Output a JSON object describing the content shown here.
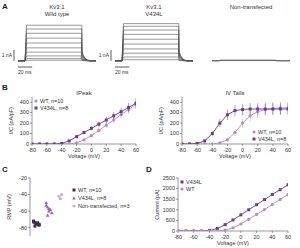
{
  "chart_data": [
    {
      "panel": "A",
      "type": "traces",
      "title": "Kv3.1",
      "subtitle": "Wild type",
      "values": [
        0.05,
        0.2,
        0.45,
        0.8,
        1.2,
        1.65,
        2.1,
        2.55,
        2.95,
        3.3
      ],
      "xlim": [
        0,
        110
      ],
      "ylim": [
        -0.3,
        3.6
      ],
      "pulse": [
        10,
        90
      ],
      "scale_y": {
        "value": 1,
        "label": "1 nA"
      },
      "scale_x": {
        "value": 20,
        "label": "20 ms"
      },
      "color": "#555555",
      "tick_labels": false
    },
    {
      "type": "traces",
      "title": "Kv3.1",
      "subtitle": "V434L",
      "values": [
        0.1,
        0.35,
        0.7,
        1.1,
        1.55,
        2.0,
        2.45,
        2.85,
        3.2,
        3.45
      ],
      "xlim": [
        0,
        110
      ],
      "ylim": [
        -0.3,
        3.6
      ],
      "pulse": [
        10,
        90
      ],
      "scale_y": {
        "value": 1,
        "label": "1 nA"
      },
      "scale_x": {
        "value": 20,
        "label": "20 ms"
      },
      "color": "#555555",
      "tick_labels": false
    },
    {
      "type": "traces",
      "title": "Non-transfected",
      "values": [
        0.02,
        0.04,
        0.06
      ],
      "xlim": [
        0,
        110
      ],
      "ylim": [
        -0.3,
        3.6
      ],
      "pulse": [
        10,
        90
      ],
      "color": "#555555",
      "tick_labels": false
    },
    {
      "panel": "B",
      "type": "line",
      "title": "IPeak",
      "x_label": "Voltage (mV)",
      "y_label": "I/C (pA/pF)",
      "x": [
        -80,
        -70,
        -60,
        -50,
        -40,
        -30,
        -20,
        -10,
        0,
        10,
        20,
        30,
        40,
        50,
        60
      ],
      "xlim": [
        -80,
        60
      ],
      "xticks": [
        -80,
        -60,
        -40,
        -20,
        0,
        20,
        40,
        60
      ],
      "ylim": [
        0,
        450
      ],
      "yticks": [
        0,
        100,
        200,
        300,
        400
      ],
      "legend": "upper left",
      "series": [
        {
          "name": "WT, n=10",
          "color": "#b48acb",
          "marker": "circle",
          "values": [
            0,
            0,
            0,
            0,
            0,
            0,
            10,
            40,
            80,
            130,
            180,
            230,
            280,
            330,
            380
          ],
          "errors": [
            0,
            0,
            0,
            0,
            0,
            0,
            5,
            10,
            15,
            20,
            25,
            30,
            35,
            40,
            45
          ]
        },
        {
          "name": "V434L, n=8",
          "color": "#6b3d8c",
          "marker": "square",
          "values": [
            0,
            0,
            0,
            0,
            5,
            30,
            70,
            110,
            150,
            190,
            230,
            270,
            310,
            350,
            390
          ],
          "errors": [
            0,
            0,
            0,
            0,
            3,
            8,
            12,
            16,
            20,
            25,
            30,
            35,
            40,
            45,
            50
          ]
        }
      ]
    },
    {
      "type": "line",
      "title": "IV Tails",
      "x_label": "Voltage (mV)",
      "y_label": "I/C (pA/pF)",
      "x": [
        -80,
        -70,
        -60,
        -50,
        -40,
        -30,
        -20,
        -10,
        0,
        10,
        20,
        30,
        40,
        50,
        60
      ],
      "xlim": [
        -80,
        60
      ],
      "xticks": [
        -80,
        -60,
        -40,
        -20,
        0,
        20,
        40,
        60
      ],
      "ylim": [
        0,
        450
      ],
      "yticks": [
        0,
        100,
        200,
        300,
        400
      ],
      "legend": "lower right",
      "series": [
        {
          "name": "WT, n=10",
          "color": "#b48acb",
          "marker": "circle",
          "values": [
            0,
            0,
            0,
            0,
            0,
            10,
            40,
            110,
            200,
            270,
            310,
            330,
            340,
            345,
            345
          ],
          "errors": [
            0,
            0,
            0,
            0,
            0,
            5,
            15,
            30,
            45,
            55,
            60,
            60,
            60,
            60,
            60
          ]
        },
        {
          "name": "V434L, n=8",
          "color": "#6b3d8c",
          "marker": "square",
          "values": [
            0,
            0,
            5,
            30,
            100,
            200,
            280,
            320,
            330,
            335,
            335,
            335,
            335,
            335,
            335
          ],
          "errors": [
            0,
            0,
            3,
            10,
            25,
            40,
            50,
            55,
            55,
            55,
            55,
            55,
            55,
            55,
            55
          ]
        }
      ]
    },
    {
      "panel": "C",
      "type": "strip",
      "y_label": "RMP (mV)",
      "ylim": [
        -90,
        -20
      ],
      "yticks": [
        -80,
        -60,
        -40,
        -20
      ],
      "legend": "right",
      "tick_labels": "y",
      "series": [
        {
          "name": "WT, n=10",
          "color": "#3d2a4f",
          "marker": "square",
          "values": [
            -72,
            -74,
            -75,
            -76,
            -77,
            -73,
            -78,
            -75,
            -74,
            -76
          ]
        },
        {
          "name": "V434L, n=8",
          "color": "#9b5fb5",
          "marker": "triangle",
          "values": [
            -50,
            -55,
            -60,
            -58,
            -62,
            -53,
            -65,
            -57
          ]
        },
        {
          "name": "Non-transfected, n=3",
          "color": "#c6b0d4",
          "marker": "circle",
          "values": [
            -42,
            -45,
            -40
          ]
        }
      ]
    },
    {
      "panel": "D",
      "type": "line",
      "x_label": "Voltage (mV)",
      "y_label": "Current (pA)",
      "x": [
        -80,
        -70,
        -60,
        -50,
        -40,
        -30,
        -20,
        -10,
        0,
        10,
        20,
        30,
        40,
        50,
        60
      ],
      "xlim": [
        -80,
        60
      ],
      "xticks": [
        -80,
        -60,
        -40,
        -20,
        0,
        20,
        40,
        60
      ],
      "ylim": [
        0,
        2500
      ],
      "yticks": [
        0,
        500,
        1000,
        1500,
        2000,
        2500
      ],
      "legend": "upper left",
      "series": [
        {
          "name": "V434L",
          "color": "#6b3d8c",
          "marker": "square",
          "values": [
            0,
            0,
            0,
            0,
            20,
            120,
            300,
            520,
            760,
            1000,
            1240,
            1480,
            1720,
            1950,
            2180
          ]
        },
        {
          "name": "WT",
          "color": "#b48acb",
          "marker": "circle",
          "values": [
            0,
            0,
            0,
            0,
            0,
            0,
            40,
            150,
            330,
            550,
            780,
            1010,
            1250,
            1490,
            1720
          ]
        }
      ]
    }
  ]
}
